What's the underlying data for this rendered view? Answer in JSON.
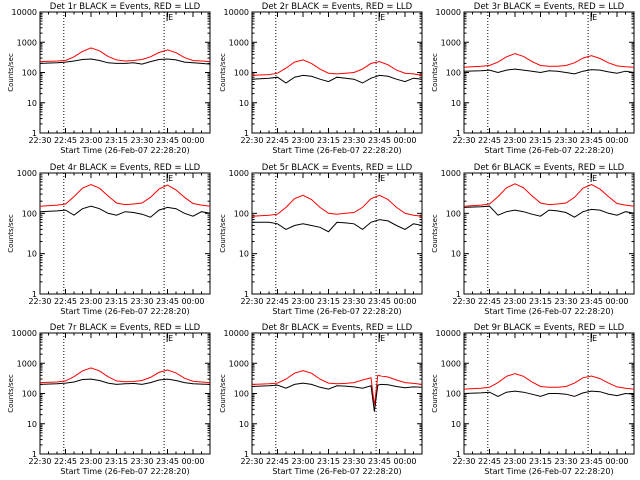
{
  "colors": {
    "events": "#000000",
    "lld": "#ff0000",
    "marker": "#000000"
  },
  "chart_data": [
    {
      "type": "line",
      "title": "Det 1r BLACK = Events, RED = LLD",
      "xlabel": "Start Time (26-Feb-07 22:28:20)",
      "ylabel": "Counts/sec",
      "yscale": "log",
      "ylim": [
        1,
        10000
      ],
      "xlim": [
        "22:30",
        "00:10"
      ],
      "grid": false,
      "x_ticks": [
        "22:30",
        "22:45",
        "23:00",
        "23:15",
        "23:30",
        "23:45",
        "00:00"
      ],
      "y_ticks": [
        "1",
        "10",
        "100",
        "1000",
        "10000"
      ],
      "vlines": [
        "22:44",
        "23:43"
      ],
      "flag_label": "E",
      "x": [
        "22:30",
        "22:40",
        "22:45",
        "22:50",
        "22:55",
        "23:00",
        "23:05",
        "23:10",
        "23:15",
        "23:20",
        "23:25",
        "23:30",
        "23:35",
        "23:40",
        "23:45",
        "23:50",
        "23:55",
        "00:00",
        "00:05",
        "00:10"
      ],
      "series": [
        {
          "name": "Events",
          "values": [
            200,
            210,
            220,
            240,
            270,
            280,
            250,
            210,
            200,
            200,
            210,
            190,
            230,
            270,
            280,
            260,
            220,
            210,
            200,
            190
          ]
        },
        {
          "name": "LLD",
          "values": [
            230,
            240,
            250,
            330,
            500,
            650,
            520,
            340,
            260,
            240,
            250,
            270,
            330,
            460,
            560,
            450,
            310,
            250,
            240,
            230
          ]
        }
      ]
    },
    {
      "type": "line",
      "title": "Det 2r BLACK = Events, RED = LLD",
      "xlabel": "Start Time (26-Feb-07 22:28:20)",
      "ylabel": "Counts/sec",
      "yscale": "log",
      "ylim": [
        1,
        10000
      ],
      "xlim": [
        "22:30",
        "00:10"
      ],
      "grid": false,
      "x_ticks": [
        "22:30",
        "22:45",
        "23:00",
        "23:15",
        "23:30",
        "23:45",
        "00:00"
      ],
      "y_ticks": [
        "1",
        "10",
        "100",
        "1000",
        "10000"
      ],
      "vlines": [
        "22:44",
        "23:43"
      ],
      "flag_label": "E",
      "x": [
        "22:30",
        "22:40",
        "22:45",
        "22:50",
        "22:55",
        "23:00",
        "23:05",
        "23:10",
        "23:15",
        "23:20",
        "23:25",
        "23:30",
        "23:35",
        "23:40",
        "23:45",
        "23:50",
        "23:55",
        "00:00",
        "00:05",
        "00:10"
      ],
      "series": [
        {
          "name": "Events",
          "values": [
            60,
            65,
            70,
            45,
            70,
            80,
            75,
            60,
            50,
            70,
            65,
            60,
            45,
            65,
            80,
            75,
            60,
            50,
            65,
            60
          ]
        },
        {
          "name": "LLD",
          "values": [
            80,
            85,
            95,
            140,
            220,
            260,
            200,
            130,
            95,
            90,
            95,
            100,
            130,
            200,
            230,
            180,
            120,
            95,
            90,
            80
          ]
        }
      ]
    },
    {
      "type": "line",
      "title": "Det 3r BLACK = Events, RED = LLD",
      "xlabel": "Start Time (26-Feb-07 22:28:20)",
      "ylabel": "Counts/sec",
      "yscale": "log",
      "ylim": [
        1,
        10000
      ],
      "xlim": [
        "22:30",
        "00:10"
      ],
      "grid": false,
      "x_ticks": [
        "22:30",
        "22:45",
        "23:00",
        "23:15",
        "23:30",
        "23:45",
        "00:00"
      ],
      "y_ticks": [
        "1",
        "10",
        "100",
        "1000",
        "10000"
      ],
      "vlines": [
        "22:44",
        "23:43"
      ],
      "flag_label": "E",
      "x": [
        "22:30",
        "22:40",
        "22:45",
        "22:50",
        "22:55",
        "23:00",
        "23:05",
        "23:10",
        "23:15",
        "23:20",
        "23:25",
        "23:30",
        "23:35",
        "23:40",
        "23:45",
        "23:50",
        "23:55",
        "00:00",
        "00:05",
        "00:10"
      ],
      "series": [
        {
          "name": "Events",
          "values": [
            110,
            115,
            120,
            100,
            120,
            130,
            120,
            110,
            100,
            115,
            110,
            100,
            90,
            110,
            125,
            120,
            105,
            95,
            110,
            100
          ]
        },
        {
          "name": "LLD",
          "values": [
            150,
            160,
            170,
            220,
            330,
            420,
            340,
            230,
            170,
            160,
            160,
            170,
            210,
            300,
            360,
            290,
            210,
            165,
            155,
            150
          ]
        }
      ]
    },
    {
      "type": "line",
      "title": "Det 4r BLACK = Events, RED = LLD",
      "xlabel": "Start Time (26-Feb-07 22:28:20)",
      "ylabel": "Counts/sec",
      "yscale": "log",
      "ylim": [
        1,
        1000
      ],
      "xlim": [
        "22:30",
        "00:10"
      ],
      "grid": false,
      "x_ticks": [
        "22:30",
        "22:45",
        "23:00",
        "23:15",
        "23:30",
        "23:45",
        "00:00"
      ],
      "y_ticks": [
        "1",
        "10",
        "100",
        "1000"
      ],
      "vlines": [
        "22:44",
        "23:43"
      ],
      "flag_label": "E",
      "x": [
        "22:30",
        "22:40",
        "22:45",
        "22:50",
        "22:55",
        "23:00",
        "23:05",
        "23:10",
        "23:15",
        "23:20",
        "23:25",
        "23:30",
        "23:35",
        "23:40",
        "23:45",
        "23:50",
        "23:55",
        "00:00",
        "00:05",
        "00:10"
      ],
      "series": [
        {
          "name": "Events",
          "values": [
            110,
            115,
            120,
            90,
            130,
            150,
            130,
            100,
            90,
            110,
            105,
            95,
            80,
            120,
            140,
            130,
            100,
            85,
            110,
            100
          ]
        },
        {
          "name": "LLD",
          "values": [
            150,
            160,
            170,
            260,
            420,
            520,
            420,
            270,
            180,
            165,
            170,
            180,
            250,
            400,
            500,
            380,
            250,
            175,
            160,
            150
          ]
        }
      ]
    },
    {
      "type": "line",
      "title": "Det 5r BLACK = Events, RED = LLD",
      "xlabel": "Start Time (26-Feb-07 22:28:20)",
      "ylabel": "Counts/sec",
      "yscale": "log",
      "ylim": [
        1,
        1000
      ],
      "xlim": [
        "22:30",
        "00:10"
      ],
      "grid": false,
      "x_ticks": [
        "22:30",
        "22:45",
        "23:00",
        "23:15",
        "23:30",
        "23:45",
        "00:00"
      ],
      "y_ticks": [
        "1",
        "10",
        "100",
        "1000"
      ],
      "vlines": [
        "22:44",
        "23:43"
      ],
      "flag_label": "E",
      "x": [
        "22:30",
        "22:40",
        "22:45",
        "22:50",
        "22:55",
        "23:00",
        "23:05",
        "23:10",
        "23:15",
        "23:20",
        "23:25",
        "23:30",
        "23:35",
        "23:40",
        "23:45",
        "23:50",
        "23:55",
        "00:00",
        "00:05",
        "00:10"
      ],
      "series": [
        {
          "name": "Events",
          "values": [
            60,
            60,
            55,
            40,
            50,
            55,
            50,
            45,
            35,
            60,
            58,
            55,
            40,
            60,
            70,
            65,
            50,
            40,
            55,
            50
          ]
        },
        {
          "name": "LLD",
          "values": [
            85,
            90,
            95,
            140,
            230,
            280,
            220,
            140,
            100,
            95,
            100,
            105,
            140,
            230,
            280,
            220,
            140,
            100,
            90,
            85
          ]
        }
      ]
    },
    {
      "type": "line",
      "title": "Det 6r BLACK = Events, RED = LLD",
      "xlabel": "Start Time (26-Feb-07 22:28:20)",
      "ylabel": "Counts/sec",
      "yscale": "log",
      "ylim": [
        1,
        1000
      ],
      "xlim": [
        "22:30",
        "00:10"
      ],
      "grid": false,
      "x_ticks": [
        "22:30",
        "22:45",
        "23:00",
        "23:15",
        "23:30",
        "23:45",
        "00:00"
      ],
      "y_ticks": [
        "1",
        "10",
        "100",
        "1000"
      ],
      "vlines": [
        "22:44",
        "23:43"
      ],
      "flag_label": "E",
      "x": [
        "22:30",
        "22:40",
        "22:45",
        "22:50",
        "22:55",
        "23:00",
        "23:05",
        "23:10",
        "23:15",
        "23:20",
        "23:25",
        "23:30",
        "23:35",
        "23:40",
        "23:45",
        "23:50",
        "23:55",
        "00:00",
        "00:05",
        "00:10"
      ],
      "series": [
        {
          "name": "Events",
          "values": [
            140,
            145,
            150,
            90,
            110,
            120,
            110,
            95,
            85,
            120,
            115,
            105,
            80,
            110,
            125,
            120,
            100,
            90,
            110,
            100
          ]
        },
        {
          "name": "LLD",
          "values": [
            150,
            160,
            170,
            260,
            430,
            540,
            430,
            270,
            180,
            165,
            170,
            180,
            250,
            420,
            520,
            400,
            260,
            175,
            160,
            150
          ]
        }
      ]
    },
    {
      "type": "line",
      "title": "Det 7r BLACK = Events, RED = LLD",
      "xlabel": "Start Time (26-Feb-07 22:28:20)",
      "ylabel": "Counts/sec",
      "yscale": "log",
      "ylim": [
        1,
        10000
      ],
      "xlim": [
        "22:30",
        "00:10"
      ],
      "grid": false,
      "x_ticks": [
        "22:30",
        "22:45",
        "23:00",
        "23:15",
        "23:30",
        "23:45",
        "00:00"
      ],
      "y_ticks": [
        "1",
        "10",
        "100",
        "1000",
        "10000"
      ],
      "vlines": [
        "22:44",
        "23:43"
      ],
      "flag_label": "E",
      "x": [
        "22:30",
        "22:40",
        "22:45",
        "22:50",
        "22:55",
        "23:00",
        "23:05",
        "23:10",
        "23:15",
        "23:20",
        "23:25",
        "23:30",
        "23:35",
        "23:40",
        "23:45",
        "23:50",
        "23:55",
        "00:00",
        "00:05",
        "00:10"
      ],
      "series": [
        {
          "name": "Events",
          "values": [
            200,
            210,
            220,
            240,
            290,
            300,
            270,
            220,
            200,
            210,
            215,
            200,
            230,
            280,
            300,
            270,
            230,
            210,
            205,
            200
          ]
        },
        {
          "name": "LLD",
          "values": [
            230,
            240,
            260,
            360,
            560,
            700,
            560,
            360,
            260,
            245,
            250,
            270,
            340,
            500,
            600,
            480,
            320,
            255,
            240,
            230
          ]
        }
      ]
    },
    {
      "type": "line",
      "title": "Det 8r BLACK = Events, RED = LLD",
      "xlabel": "Start Time (26-Feb-07 22:28:20)",
      "ylabel": "Counts/sec",
      "yscale": "log",
      "ylim": [
        1,
        10000
      ],
      "xlim": [
        "22:30",
        "00:10"
      ],
      "grid": false,
      "x_ticks": [
        "22:30",
        "22:45",
        "23:00",
        "23:15",
        "23:30",
        "23:45",
        "00:00"
      ],
      "y_ticks": [
        "1",
        "10",
        "100",
        "1000",
        "10000"
      ],
      "vlines": [
        "22:44",
        "23:43"
      ],
      "flag_label": "E",
      "x": [
        "22:30",
        "22:40",
        "22:45",
        "22:50",
        "22:55",
        "23:00",
        "23:05",
        "23:10",
        "23:15",
        "23:20",
        "23:25",
        "23:30",
        "23:35",
        "23:40",
        "23:42",
        "23:44",
        "23:46",
        "23:50",
        "23:55",
        "00:00",
        "00:05",
        "00:10"
      ],
      "series": [
        {
          "name": "Events",
          "values": [
            170,
            180,
            190,
            150,
            200,
            220,
            200,
            160,
            140,
            180,
            175,
            165,
            150,
            180,
            25,
            190,
            200,
            195,
            170,
            155,
            165,
            160
          ]
        },
        {
          "name": "LLD",
          "values": [
            200,
            210,
            220,
            300,
            470,
            570,
            470,
            300,
            220,
            210,
            215,
            230,
            280,
            330,
            40,
            400,
            380,
            350,
            280,
            230,
            215,
            200
          ]
        }
      ]
    },
    {
      "type": "line",
      "title": "Det 9r BLACK = Events, RED = LLD",
      "xlabel": "Start Time (26-Feb-07 22:28:20)",
      "ylabel": "Counts/sec",
      "yscale": "log",
      "ylim": [
        1,
        10000
      ],
      "xlim": [
        "22:30",
        "00:10"
      ],
      "grid": false,
      "x_ticks": [
        "22:30",
        "22:45",
        "23:00",
        "23:15",
        "23:30",
        "23:45",
        "00:00"
      ],
      "y_ticks": [
        "1",
        "10",
        "100",
        "1000",
        "10000"
      ],
      "vlines": [
        "22:44",
        "23:43"
      ],
      "flag_label": "E",
      "x": [
        "22:30",
        "22:40",
        "22:45",
        "22:50",
        "22:55",
        "23:00",
        "23:05",
        "23:10",
        "23:15",
        "23:20",
        "23:25",
        "23:30",
        "23:35",
        "23:40",
        "23:45",
        "23:50",
        "23:55",
        "00:00",
        "00:05",
        "00:10"
      ],
      "series": [
        {
          "name": "Events",
          "values": [
            100,
            105,
            110,
            80,
            110,
            120,
            110,
            95,
            80,
            100,
            100,
            95,
            80,
            105,
            120,
            115,
            95,
            85,
            100,
            95
          ]
        },
        {
          "name": "LLD",
          "values": [
            140,
            150,
            160,
            230,
            370,
            450,
            370,
            240,
            170,
            160,
            160,
            170,
            220,
            330,
            380,
            310,
            220,
            165,
            150,
            140
          ]
        }
      ]
    }
  ]
}
